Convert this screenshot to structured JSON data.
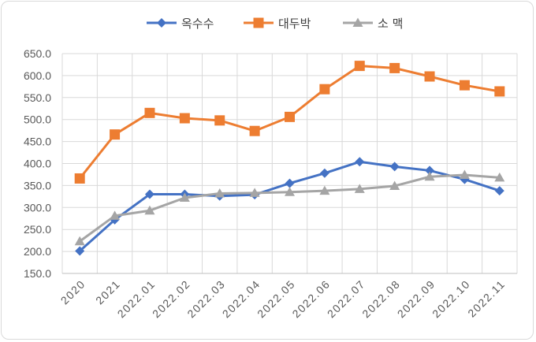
{
  "chart_data": {
    "type": "line",
    "title": "",
    "xlabel": "",
    "ylabel": "",
    "categories": [
      "2020",
      "2021",
      "2022.01",
      "2022.02",
      "2022.03",
      "2022.04",
      "2022.05",
      "2022.06",
      "2022.07",
      "2022.08",
      "2022.09",
      "2022.10",
      "2022.11"
    ],
    "ylim": [
      150,
      650
    ],
    "ystep": 50,
    "ytick_decimals": 1,
    "grid": "horizontal",
    "legend_position": "top-center",
    "series": [
      {
        "name": "옥수수",
        "color": "#4472c4",
        "marker": "diamond",
        "values": [
          201,
          272,
          330,
          330,
          326,
          329,
          355,
          378,
          404,
          393,
          384,
          364,
          338
        ]
      },
      {
        "name": "대두박",
        "color": "#ed7d31",
        "marker": "square",
        "values": [
          366,
          466,
          515,
          503,
          498,
          474,
          506,
          569,
          622,
          617,
          598,
          578,
          564
        ]
      },
      {
        "name": "소 맥",
        "color": "#a5a5a5",
        "marker": "triangle",
        "values": [
          223,
          281,
          293,
          322,
          332,
          333,
          335,
          338,
          342,
          349,
          370,
          374,
          368
        ]
      }
    ]
  }
}
